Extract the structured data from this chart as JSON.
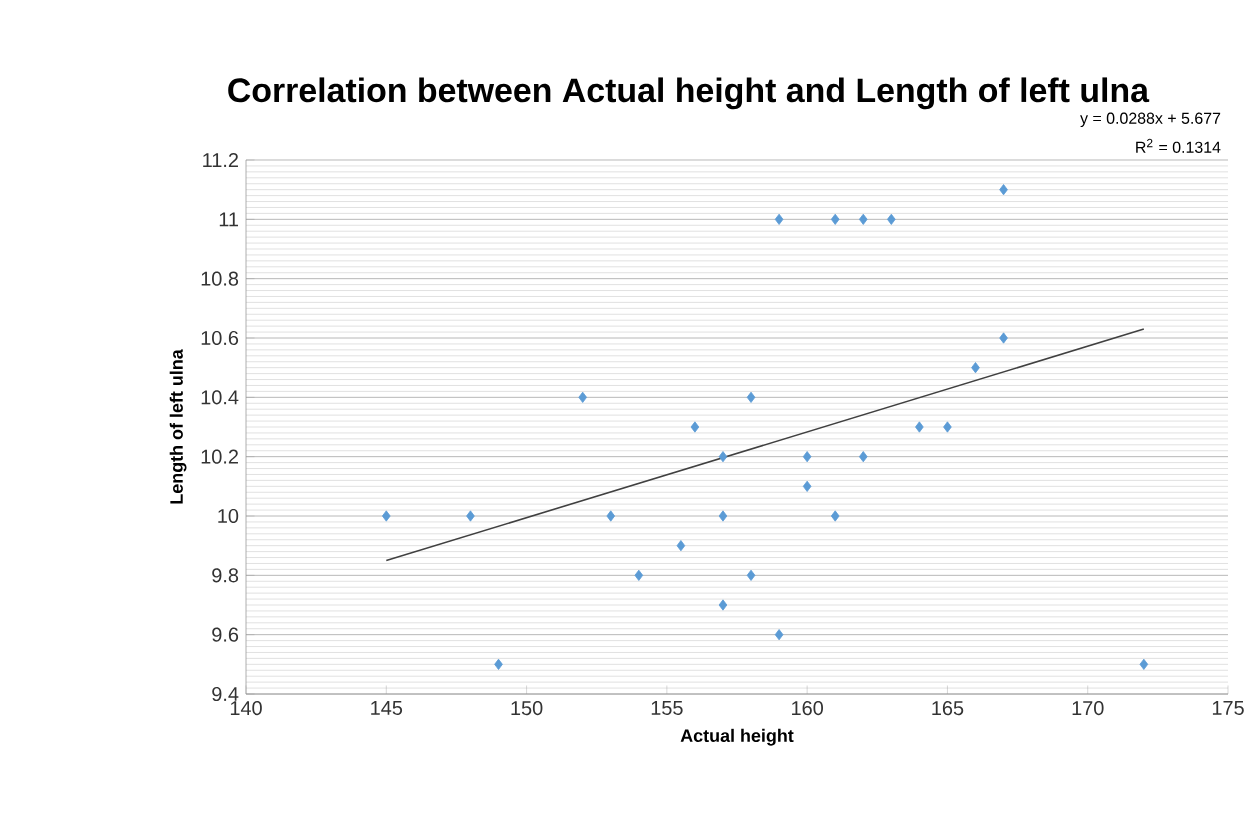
{
  "chart_data": {
    "type": "scatter",
    "title": "Correlation between Actual height and Length of left ulna",
    "xlabel": "Actual height",
    "ylabel": "Length of left ulna",
    "annotations": [
      "y = 0.0288x + 5.677",
      "R$^{2}$ = 0.1314"
    ],
    "series": [
      {
        "color": "#5b9bd5",
        "marker": "diamond",
        "x": [
          145,
          148,
          149,
          152,
          153,
          154,
          155.5,
          156,
          157,
          157,
          157,
          158,
          158,
          159,
          159,
          160,
          160,
          161,
          161,
          162,
          162,
          163,
          164,
          165,
          166,
          167,
          167,
          172
        ],
        "values": [
          10,
          10,
          9.5,
          10.4,
          10,
          9.8,
          9.9,
          10.3,
          10.2,
          10,
          9.7,
          10.4,
          9.8,
          11,
          9.6,
          10.2,
          10.1,
          11,
          10,
          11,
          10.2,
          11,
          10.3,
          10.3,
          10.5,
          11.1,
          10.6,
          9.5
        ]
      },
      {
        "type": "line",
        "color": "#404040",
        "marker": "none",
        "x": [
          145,
          172
        ],
        "values": [
          9.85,
          10.63
        ]
      }
    ],
    "xlim": [
      140,
      175
    ],
    "xticks": [
      140,
      145,
      150,
      155,
      160,
      165,
      170,
      175
    ],
    "ylim": [
      9.4,
      11.2
    ],
    "yticks": [
      9.4,
      9.6,
      9.8,
      10,
      10.2,
      10.4,
      10.6,
      10.8,
      11,
      11.2
    ],
    "grid": "y"
  }
}
